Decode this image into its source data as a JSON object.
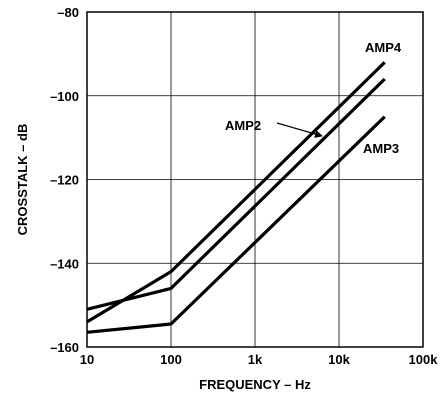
{
  "chart_data": {
    "type": "line",
    "xlabel": "FREQUENCY – Hz",
    "ylabel": "CROSSTALK – dB",
    "x_scale": "log",
    "xlim": [
      10,
      100000
    ],
    "ylim": [
      -160,
      -80
    ],
    "grid": true,
    "x_ticks": [
      {
        "value": 10,
        "label": "10"
      },
      {
        "value": 100,
        "label": "100"
      },
      {
        "value": 1000,
        "label": "1k"
      },
      {
        "value": 10000,
        "label": "10k"
      },
      {
        "value": 100000,
        "label": "100k"
      }
    ],
    "y_ticks": [
      {
        "value": -80,
        "label": "–80"
      },
      {
        "value": -100,
        "label": "–100"
      },
      {
        "value": -120,
        "label": "–120"
      },
      {
        "value": -140,
        "label": "–140"
      },
      {
        "value": -160,
        "label": "–160"
      }
    ],
    "series": [
      {
        "name": "AMP4",
        "x": [
          10,
          100,
          35000
        ],
        "y": [
          -154,
          -142,
          -92
        ]
      },
      {
        "name": "AMP2",
        "x": [
          10,
          100,
          35000
        ],
        "y": [
          -151,
          -146,
          -96
        ]
      },
      {
        "name": "AMP3",
        "x": [
          10,
          100,
          35000
        ],
        "y": [
          -156.5,
          -154.5,
          -105
        ]
      }
    ],
    "annotations": [
      {
        "text": "AMP4",
        "series": "AMP4",
        "arrow": false
      },
      {
        "text": "AMP2",
        "series": "AMP2",
        "arrow": true
      },
      {
        "text": "AMP3",
        "series": "AMP3",
        "arrow": false
      }
    ]
  }
}
